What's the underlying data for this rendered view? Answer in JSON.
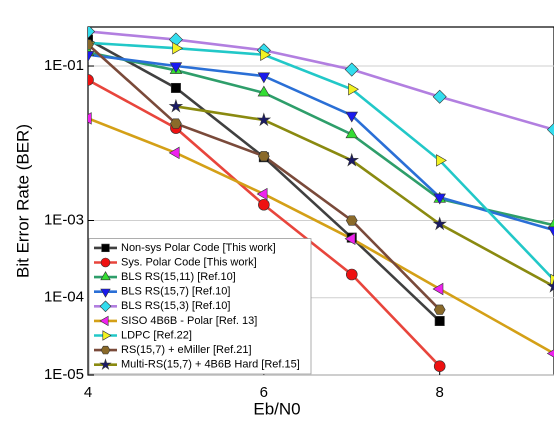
{
  "chart_data": {
    "type": "line",
    "log_y": true,
    "grid": true,
    "legend": "bottom-left",
    "x_label": "Eb/N0",
    "y_label": "Bit Error Rate (BER)",
    "x": [
      4,
      5,
      6,
      7,
      8,
      9.3
    ],
    "xlim": [
      4,
      9.3
    ],
    "xticks": [
      4,
      6,
      8
    ],
    "ylim": [
      1e-05,
      0.32
    ],
    "yticks": [
      {
        "value": 0.1,
        "label": "1E-01"
      },
      {
        "value": 0.001,
        "label": "1E-03"
      },
      {
        "value": 0.0001,
        "label": "1E-04"
      },
      {
        "value": 1e-05,
        "label": "1E-05"
      }
    ],
    "series": [
      {
        "name": "Non-sys Polar Code [This work]",
        "color": "#404040",
        "marker": "square",
        "marker_color": "#000000",
        "values": [
          0.22,
          0.052,
          0.0066,
          0.0006,
          5e-05,
          null
        ]
      },
      {
        "name": "Sys. Polar Code [This work]",
        "color": "#e8453c",
        "marker": "circle",
        "marker_color": "#ee1111",
        "values": [
          0.066,
          0.0157,
          0.0016,
          0.0002,
          1.3e-05,
          null
        ]
      },
      {
        "name": "BLS RS(15,11) [Ref.10]",
        "color": "#2e9e6a",
        "marker": "triangle-up",
        "marker_color": "#33dd33",
        "values": [
          0.15,
          0.088,
          0.045,
          0.013,
          0.0019,
          0.00087
        ]
      },
      {
        "name": "BLS RS(15,7) [Ref.10]",
        "color": "#2a6fd6",
        "marker": "triangle-down",
        "marker_color": "#1a1aee",
        "values": [
          0.14,
          0.1,
          0.074,
          0.023,
          0.002,
          0.00075
        ]
      },
      {
        "name": "BLS RS(15,3) [Ref.10]",
        "color": "#b27fe0",
        "marker": "diamond",
        "marker_color": "#33ddee",
        "values": [
          0.28,
          0.22,
          0.16,
          0.09,
          0.04,
          0.015
        ]
      },
      {
        "name": "SISO 4B6B - Polar [Ref. 13]",
        "color": "#d4a017",
        "marker": "triangle-left",
        "marker_color": "#ee22ee",
        "values": [
          0.021,
          0.0075,
          0.0022,
          0.00058,
          0.00013,
          1.9e-05
        ]
      },
      {
        "name": "LDPC [Ref.22]",
        "color": "#22c8c8",
        "marker": "triangle-right",
        "marker_color": "#f2f222",
        "values": [
          0.2,
          0.17,
          0.14,
          0.05,
          0.006,
          0.00017
        ]
      },
      {
        "name": "RS(15,7) + eMiller [Ref.21]",
        "color": "#7a4a3a",
        "marker": "hexagon",
        "marker_color": "#8a6a2a",
        "values": [
          0.19,
          0.018,
          0.0068,
          0.001,
          7e-05,
          null
        ]
      },
      {
        "name": "Multi-RS(15,7) + 4B6B Hard [Ref.15]",
        "color": "#8a8a10",
        "marker": "star",
        "marker_color": "#1a1a66",
        "values": [
          null,
          0.03,
          0.02,
          0.006,
          0.0009,
          0.00014
        ]
      }
    ]
  }
}
